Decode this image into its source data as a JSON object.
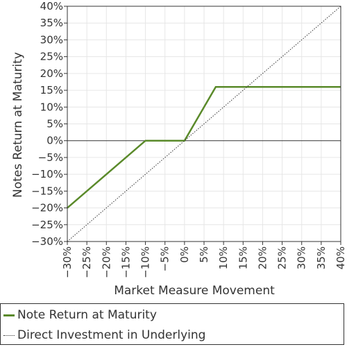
{
  "chart_data": {
    "type": "line",
    "xlabel": "Market Measure Movement",
    "ylabel": "Notes Return at Maturity",
    "xlim": [
      -30,
      40
    ],
    "ylim": [
      -30,
      40
    ],
    "x_ticks": [
      -30,
      -25,
      -20,
      -15,
      -10,
      -5,
      0,
      5,
      10,
      15,
      20,
      25,
      30,
      35,
      40
    ],
    "y_ticks": [
      -30,
      -25,
      -20,
      -15,
      -10,
      -5,
      0,
      5,
      10,
      15,
      20,
      25,
      30,
      35,
      40
    ],
    "x_tick_labels": [
      "−30%",
      "−25%",
      "−20%",
      "−15%",
      "−10%",
      "−5%",
      "0%",
      "5%",
      "10%",
      "15%",
      "20%",
      "25%",
      "30%",
      "35%",
      "40%"
    ],
    "y_tick_labels": [
      "−30%",
      "−25%",
      "−20%",
      "−15%",
      "−10%",
      "−5%",
      "0%",
      "5%",
      "10%",
      "15%",
      "20%",
      "25%",
      "30%",
      "35%",
      "40%"
    ],
    "grid": true,
    "legend_placement": "bottom",
    "series": [
      {
        "name": "Note Return at Maturity",
        "color": "#5a8a2a",
        "style": "solid",
        "x": [
          -30,
          -10,
          0,
          8,
          40
        ],
        "y": [
          -20,
          0,
          0,
          16,
          16
        ]
      },
      {
        "name": "Direct Investment in Underlying",
        "color": "#333333",
        "style": "dotted",
        "x": [
          -30,
          40
        ],
        "y": [
          -30,
          40
        ]
      }
    ]
  }
}
